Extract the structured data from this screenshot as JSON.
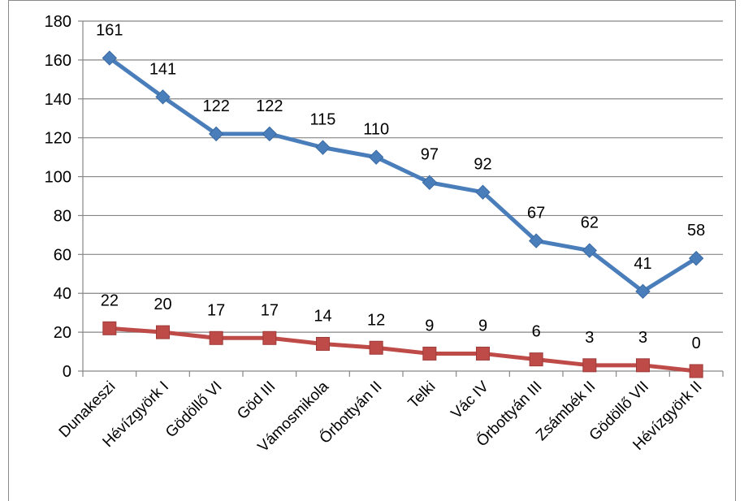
{
  "chart_data": {
    "type": "line",
    "title": "",
    "xlabel": "",
    "ylabel": "",
    "categories": [
      "Dunakeszi",
      "Hévízgyörk I",
      "Gödöllő VI",
      "Göd III",
      "Vámosmikola",
      "Őrbottyán II",
      "Telki",
      "Vác IV",
      "Őrbottyán III",
      "Zsámbék II",
      "Gödöllő VII",
      "Hévízgyörk II"
    ],
    "series": [
      {
        "color": "#4a7ebb",
        "marker": "diamond",
        "values": [
          161,
          141,
          122,
          122,
          115,
          110,
          97,
          92,
          67,
          62,
          41,
          58
        ]
      },
      {
        "color": "#be4b48",
        "marker": "square",
        "values": [
          22,
          20,
          17,
          17,
          14,
          12,
          9,
          9,
          6,
          3,
          3,
          0
        ]
      }
    ],
    "ylim": [
      0,
      180
    ],
    "yticks": [
      0,
      20,
      40,
      60,
      80,
      100,
      120,
      140,
      160,
      180
    ],
    "grid": true,
    "legend": "none"
  }
}
